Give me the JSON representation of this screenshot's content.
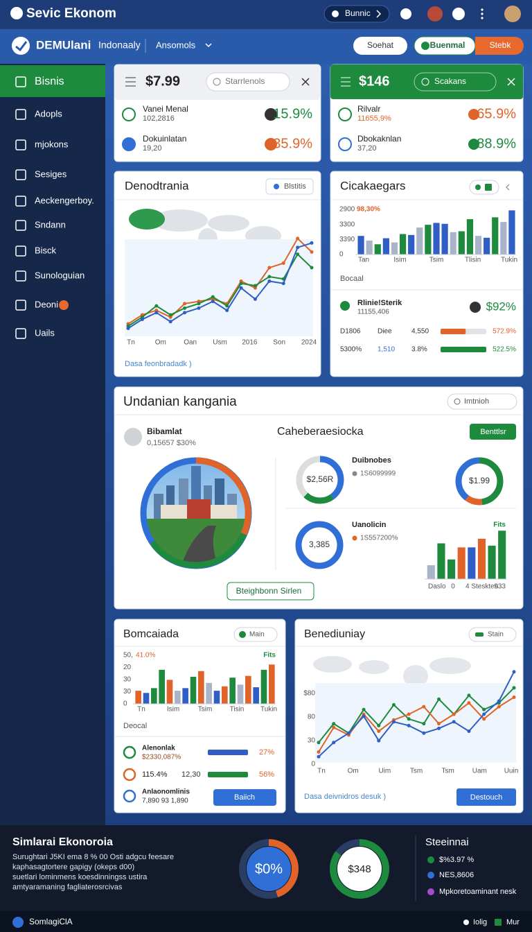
{
  "top_bar": {
    "brand": "Sevic Ekonom",
    "pill": "Bunnic"
  },
  "nav_bar": {
    "brand": "DEMUlani",
    "region": "Indonaaly",
    "menu": "Ansomols",
    "search": "Soehat",
    "primary_button": "Buenmal",
    "secondary_button": "Stebk"
  },
  "sidebar": {
    "items": [
      "Bisnis",
      "Adopls",
      "mjokons",
      "Sesiges",
      "Aeckengerboy.",
      "Sndann",
      "Bisck",
      "Sunologuian",
      "Deoni",
      "Uails"
    ]
  },
  "price_card": {
    "title": "$7.99",
    "search": "Starrlenols",
    "rows": [
      {
        "label": "Vanei Menal",
        "detail": "102,2816",
        "value": "15.9%"
      },
      {
        "label": "Dokuinlatan",
        "detail": "19,20",
        "value": "35.9%"
      }
    ]
  },
  "green_card": {
    "title": "$146",
    "search": "Scakans",
    "rows": [
      {
        "label": "Rilvalr",
        "detail": "11655,9%",
        "value": "65.9%"
      },
      {
        "label": "Dbokaknlan",
        "detail": "37,20",
        "value": "88.9%"
      }
    ]
  },
  "trend_card": {
    "title": "Denodtrania",
    "button": "Blstitis",
    "note": "Dasa feonbradadk )",
    "chart": {
      "type": "line",
      "x_labels": [
        "Tn",
        "Om",
        "Oan",
        "Usm",
        "2016",
        "Son",
        "2024"
      ],
      "ylim": [
        0,
        100
      ],
      "series": [
        {
          "color": "#e0632a",
          "values": [
            8,
            16,
            20,
            14,
            26,
            28,
            30,
            26,
            46,
            40,
            58,
            62,
            84,
            72
          ]
        },
        {
          "color": "#1e8a3e",
          "values": [
            6,
            14,
            24,
            16,
            22,
            26,
            32,
            24,
            44,
            42,
            50,
            48,
            70,
            58
          ]
        },
        {
          "color": "#2f5fc4",
          "values": [
            4,
            12,
            18,
            10,
            18,
            22,
            28,
            20,
            40,
            30,
            46,
            44,
            76,
            80
          ]
        }
      ]
    }
  },
  "bars_card": {
    "title": "Cicakaegars",
    "chart": {
      "type": "bar",
      "axis_labels": [
        "2900",
        "3300",
        "3390",
        "0"
      ],
      "badge": "98,30%",
      "x_labels": [
        "Tan",
        "Isim",
        "Tsim",
        "Tlisin",
        "Tukin"
      ],
      "ylim": [
        0,
        100
      ],
      "values": [
        40,
        30,
        22,
        35,
        26,
        44,
        42,
        58,
        64,
        68,
        66,
        48,
        50,
        76,
        40,
        36,
        80,
        70,
        95
      ],
      "colors": [
        "#2f5fc4",
        "#aab4c8",
        "#1e8a3e",
        "#2f5fc4",
        "#aab4c8",
        "#1e8a3e",
        "#2f5fc4",
        "#aab4c8",
        "#1e8a3e",
        "#2f5fc4",
        "#2f5fc4",
        "#aab4c8",
        "#1e8a3e",
        "#1e8a3e",
        "#aab4c8",
        "#2f5fc4",
        "#1e8a3e",
        "#aab4c8",
        "#2f5fc4"
      ]
    },
    "section": "Bocaal",
    "highlight": {
      "label": "Rlinie!Sterik",
      "detail": "11155,406",
      "value": "$92%"
    },
    "rows": [
      {
        "cells": [
          "D1806",
          "Diee",
          "4,550"
        ],
        "progress": 55,
        "color": "#e0632a",
        "value": "572.9%"
      },
      {
        "cells": [
          "5300%",
          "1,510",
          "3.8%"
        ],
        "progress": 100,
        "color": "#1e8a3e",
        "value": "522.5%"
      }
    ]
  },
  "overview_card": {
    "title": "Undanian kangania",
    "search": "Imtnioh",
    "profile": {
      "name": "Bibamlat",
      "detail": "0,15657 $30%"
    },
    "subtitle": "Caheberaesiocka",
    "button": "Benttlsr",
    "link_button": "Bteighbonn Sirlen",
    "donuts": [
      {
        "center_label": "$2,56R",
        "label": "Duibnobes",
        "detail": "1S6099999",
        "segments": [
          {
            "value": 40,
            "color": "#2f6fd6"
          },
          {
            "value": 22,
            "color": "#1e8a3e"
          },
          {
            "value": 38,
            "color": "#dddddd"
          }
        ]
      },
      {
        "center_label": "$1.99",
        "segments": [
          {
            "value": 48,
            "color": "#1e8a3e"
          },
          {
            "value": 12,
            "color": "#e0632a"
          },
          {
            "value": 40,
            "color": "#2f6fd6"
          }
        ]
      },
      {
        "center_label": "3,385",
        "label": "Uanolicin",
        "detail": "1S557200%",
        "segments": [
          {
            "value": 100,
            "color": "#2f6fd6"
          }
        ]
      }
    ],
    "bar_chart": {
      "type": "bar",
      "badge": "Fits",
      "x_labels": [
        "Daslo",
        "0",
        "4 Steskten",
        "933"
      ],
      "ylim": [
        0,
        100
      ],
      "values": [
        24,
        62,
        34,
        55,
        55,
        70,
        58,
        84
      ],
      "colors": [
        "#aab4c8",
        "#1e8a3e",
        "#1e8a3e",
        "#e0632a",
        "#2f5fc4",
        "#e0632a",
        "#1e8a3e",
        "#1e8a3e"
      ]
    }
  },
  "compare_card": {
    "title": "Bomcaiada",
    "badge": "Main",
    "chart": {
      "type": "bar",
      "axis_labels": [
        "50,",
        "20",
        "30",
        "30",
        "0"
      ],
      "badge": "41.0%",
      "tag": "Fits",
      "x_labels": [
        "Tn",
        "Isim",
        "Tsim",
        "Tisin",
        "Tukin"
      ],
      "ylim": [
        0,
        100
      ],
      "values": [
        30,
        25,
        36,
        78,
        55,
        30,
        36,
        62,
        75,
        48,
        30,
        40,
        60,
        44,
        64,
        38,
        78,
        90
      ],
      "colors": [
        "#e0632a",
        "#2f5fc4",
        "#1e8a3e",
        "#1e8a3e",
        "#e0632a",
        "#aab4c8",
        "#2f5fc4",
        "#1e8a3e",
        "#e0632a",
        "#aab4c8",
        "#2f5fc4",
        "#e0632a",
        "#1e8a3e",
        "#aab4c8",
        "#e0632a",
        "#2f5fc4",
        "#1e8a3e",
        "#e0632a"
      ]
    },
    "section": "Deocal",
    "rows": [
      {
        "label": "Alenonlak",
        "detail": "$2330,087%",
        "progress": 100,
        "color": "#2f5fc4",
        "value": "27%"
      },
      {
        "label": "115.4%",
        "detail": "12,30",
        "progress": 100,
        "color": "#1e8a3e",
        "value": "56%"
      },
      {
        "label": "Anlaonomlinis",
        "detail": "7,890   93   1,890"
      }
    ],
    "button": "Baiich"
  },
  "forecast_card": {
    "title": "Benediuniay",
    "badge": "Stain",
    "note": "Dasa deivnidros desuk )",
    "button": "Destouch",
    "chart": {
      "type": "line",
      "axis_labels": [
        "$80",
        "80",
        "30",
        "0"
      ],
      "x_labels": [
        "Tn",
        "Om",
        "Uim",
        "Tsm",
        "Tsm",
        "Uam",
        "Uuin"
      ],
      "ylim": [
        0,
        100
      ],
      "series": [
        {
          "color": "#1e8a3e",
          "values": [
            20,
            40,
            30,
            55,
            38,
            60,
            45,
            40,
            66,
            50,
            70,
            55,
            62,
            78
          ]
        },
        {
          "color": "#e0632a",
          "values": [
            10,
            36,
            28,
            50,
            32,
            44,
            50,
            58,
            40,
            50,
            62,
            45,
            58,
            68
          ]
        },
        {
          "color": "#2f5fc4",
          "values": [
            5,
            20,
            30,
            48,
            22,
            42,
            38,
            30,
            35,
            42,
            32,
            50,
            64,
            95
          ]
        }
      ]
    }
  },
  "footer": {
    "title": "Simlarai Ekonoroia",
    "text": [
      "Surughtari J5KI ema 8 % 00 Osti adgcu feesare",
      "kaphasagtortere gapigy (okeps d00)",
      "suetlari lominmens koesdinningss ustira",
      "amtyaramaning fagliaterosrcivas"
    ],
    "gauges": [
      {
        "label": "$0%",
        "segments": [
          {
            "value": 45,
            "color": "#e0632a"
          },
          {
            "value": 55,
            "color": "#2a3d63"
          }
        ]
      },
      {
        "label": "$348",
        "segments": [
          {
            "value": 85,
            "color": "#1e8a3e"
          },
          {
            "value": 15,
            "color": "#2a3d63"
          }
        ]
      }
    ],
    "list_title": "Steeinnai",
    "list": [
      "$%3.97 %",
      "NES,8606",
      "Mpkoretoaminant nesk"
    ]
  },
  "bottom_bar": {
    "brand": "SomlagiClA",
    "links": [
      "Iolig",
      "Mur"
    ]
  }
}
